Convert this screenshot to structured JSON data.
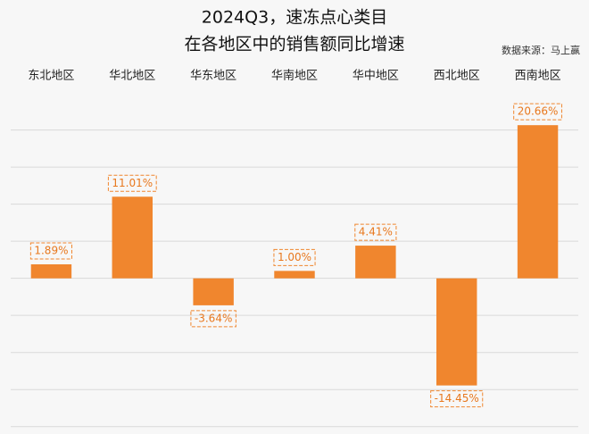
{
  "chart_data": {
    "type": "bar",
    "title": [
      "2024Q3，速冻点心类目",
      "在各地区中的销售额同比增速"
    ],
    "source": "数据来源：马上赢",
    "categories": [
      "东北地区",
      "华北地区",
      "华东地区",
      "华南地区",
      "华中地区",
      "西北地区",
      "西南地区"
    ],
    "values": [
      1.89,
      11.01,
      -3.64,
      1.0,
      4.41,
      -14.45,
      20.66
    ],
    "value_labels": [
      "1.89%",
      "11.01%",
      "-3.64%",
      "1.00%",
      "4.41%",
      "-14.45%",
      "20.66%"
    ],
    "color": "#f0862e",
    "ylim": [
      -21,
      25.5
    ],
    "yticks": [
      -20,
      -15,
      -10,
      -5,
      0,
      5,
      10,
      15,
      20
    ],
    "grid": true
  }
}
